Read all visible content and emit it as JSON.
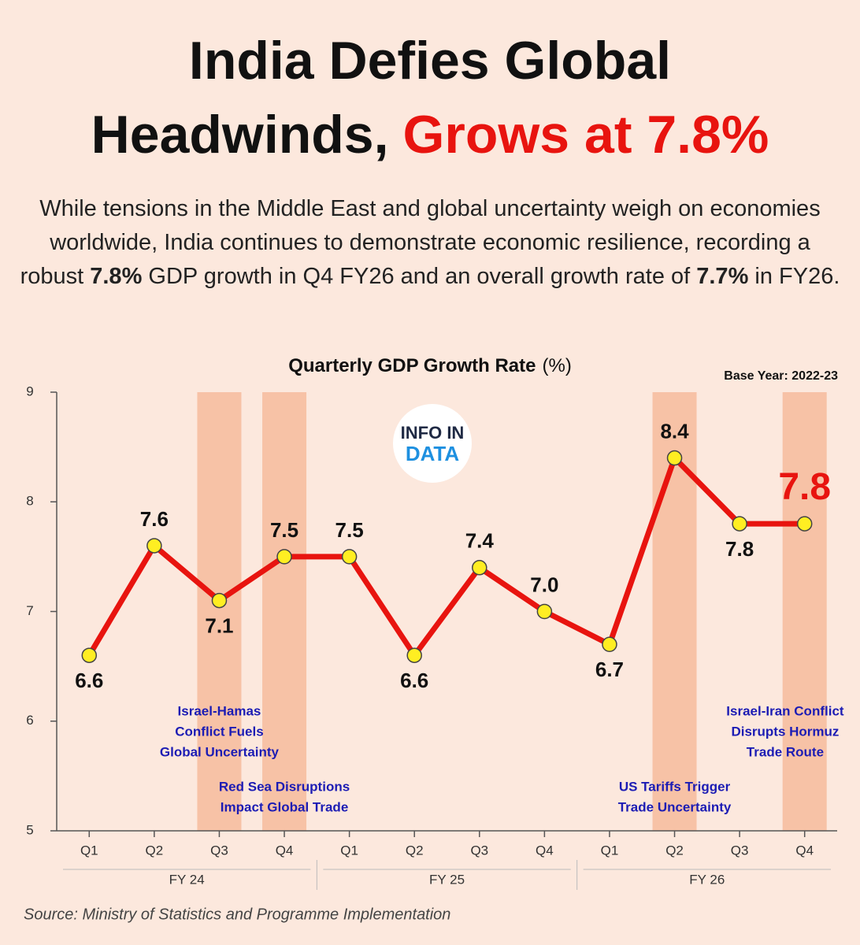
{
  "headline": {
    "line1": "India Defies Global",
    "line2": "Headwinds,",
    "highlight": "Grows at 7.8%"
  },
  "intro": [
    {
      "text": "While tensions in the Middle East and global uncertainty weigh on economies worldwide, India continues to demonstrate economic resilience, recording a robust ",
      "bold": false
    },
    {
      "text": "7.8%",
      "bold": true
    },
    {
      "text": " GDP growth in Q4 FY26 and an overall growth rate of ",
      "bold": false
    },
    {
      "text": "7.7%",
      "bold": true
    },
    {
      "text": " in FY26.",
      "bold": false
    }
  ],
  "logo": {
    "top": "INFO IN",
    "bottom": "DATA"
  },
  "source": "Source: Ministry of Statistics and Programme Implementation",
  "chart_data": {
    "type": "line",
    "title": "Quarterly GDP Growth Rate",
    "title_unit": "(%)",
    "note": "Base Year: 2022-23",
    "categories": [
      "Q1",
      "Q2",
      "Q3",
      "Q4",
      "Q1",
      "Q2",
      "Q3",
      "Q4",
      "Q1",
      "Q2",
      "Q3",
      "Q4"
    ],
    "x_groups": [
      "FY 24",
      "FY 25",
      "FY 26"
    ],
    "values": [
      6.6,
      7.6,
      7.1,
      7.5,
      7.5,
      6.6,
      7.4,
      7.0,
      6.7,
      8.4,
      7.8,
      7.8
    ],
    "value_labels": [
      "6.6",
      "7.6",
      "7.1",
      "7.5",
      "7.5",
      "6.6",
      "7.4",
      "7.0",
      "6.7",
      "8.4",
      "7.8",
      "7.8"
    ],
    "label_positions": [
      "below",
      "above",
      "below",
      "above",
      "above",
      "below",
      "above",
      "above",
      "below",
      "above",
      "below",
      "above"
    ],
    "highlight_last": true,
    "color": "#e8140f",
    "marker_color": "#ffee22",
    "band_color": "#f7c2a6",
    "annotation_color": "#1c1cb4",
    "ylim": [
      5,
      9
    ],
    "yticks": [
      5,
      6,
      7,
      8,
      9
    ],
    "grid": false,
    "shaded": [
      2,
      3,
      9,
      11
    ],
    "annotations": [
      {
        "at": 2,
        "lines": [
          "Israel-Hamas",
          "Conflict Fuels",
          "Global Uncertainty"
        ]
      },
      {
        "at": 3,
        "lines": [
          "Red Sea Disruptions",
          "Impact Global Trade"
        ]
      },
      {
        "at": 9,
        "lines": [
          "US Tariffs Trigger",
          "Trade Uncertainty"
        ]
      },
      {
        "at": 10.7,
        "lines": [
          "Israel-Iran Conflict",
          "Disrupts Hormuz",
          "Trade Route"
        ]
      }
    ]
  }
}
